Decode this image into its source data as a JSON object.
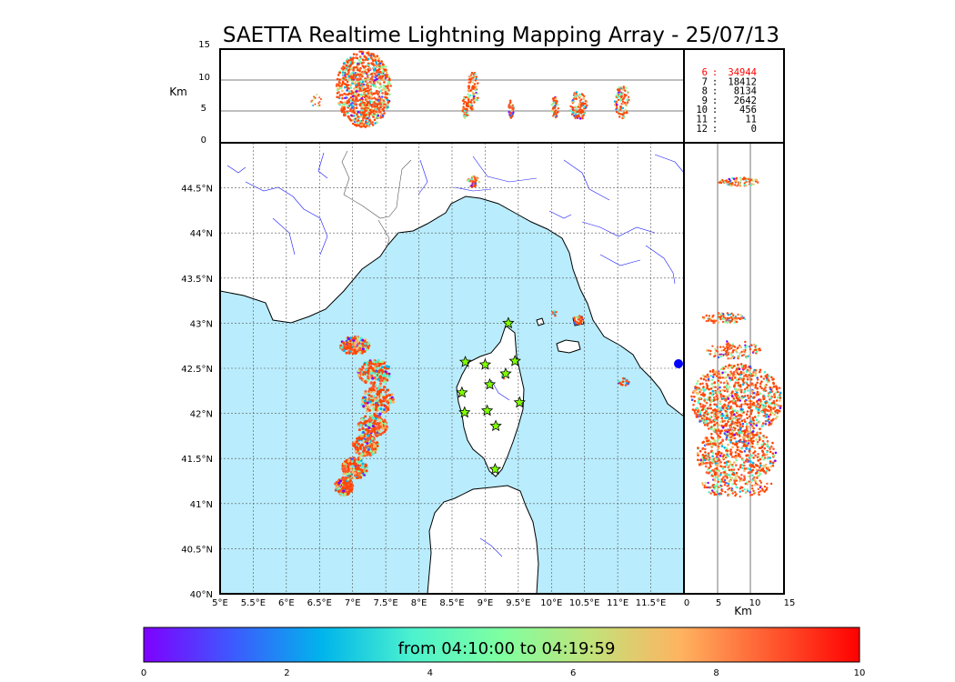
{
  "title": "SAETTA Realtime Lightning Mapping Array - 25/07/13",
  "top_panel": {
    "ylabel": "Km",
    "y_ticks": [
      "15",
      "10",
      "5",
      "0"
    ]
  },
  "side_panel": {
    "xlabel": "Km",
    "x_ticks": [
      "0",
      "5",
      "10",
      "15"
    ]
  },
  "map": {
    "lat_labels": [
      "44.5°N",
      "44°N",
      "43.5°N",
      "43°N",
      "42.5°N",
      "42°N",
      "41.5°N",
      "41°N",
      "40.5°N",
      "40°N"
    ],
    "lon_labels": [
      "5°E",
      "5.5°E",
      "6°E",
      "6.5°E",
      "7°E",
      "7.5°E",
      "8°E",
      "8.5°E",
      "9°E",
      "9.5°E",
      "10°E",
      "10.5°E",
      "11°E",
      "11.5°E"
    ],
    "lon_range": [
      5,
      12
    ],
    "lat_range": [
      40,
      45
    ],
    "sea_color": "#b9ecfc",
    "land_color": "#ffffff",
    "river_color": "#1a1aff",
    "station_color": "#7fff00",
    "stations": [
      {
        "lon": 9.35,
        "lat": 43.0
      },
      {
        "lon": 8.7,
        "lat": 42.57
      },
      {
        "lon": 9.0,
        "lat": 42.54
      },
      {
        "lon": 9.45,
        "lat": 42.58
      },
      {
        "lon": 9.31,
        "lat": 42.44
      },
      {
        "lon": 9.07,
        "lat": 42.32
      },
      {
        "lon": 8.65,
        "lat": 42.23
      },
      {
        "lon": 9.52,
        "lat": 42.12
      },
      {
        "lon": 8.69,
        "lat": 42.01
      },
      {
        "lon": 9.03,
        "lat": 42.03
      },
      {
        "lon": 9.16,
        "lat": 41.86
      },
      {
        "lon": 9.15,
        "lat": 41.38
      }
    ]
  },
  "counts": [
    {
      "label": "6",
      "value": "34944"
    },
    {
      "label": "7",
      "value": "18412"
    },
    {
      "label": "8",
      "value": "8134"
    },
    {
      "label": "9",
      "value": "2642"
    },
    {
      "label": "10",
      "value": "456"
    },
    {
      "label": "11",
      "value": "11"
    },
    {
      "label": "12",
      "value": "0"
    }
  ],
  "colorbar": {
    "label": "from 04:10:00 to 04:19:59",
    "ticks": [
      "0",
      "2",
      "4",
      "6",
      "8",
      "10"
    ],
    "colors": [
      "#7f00ff",
      "#3d5afe",
      "#00b5eb",
      "#4cf2ce",
      "#7fffa0",
      "#c2e27a",
      "#ffb360",
      "#ff5a30",
      "#ff0000"
    ]
  }
}
